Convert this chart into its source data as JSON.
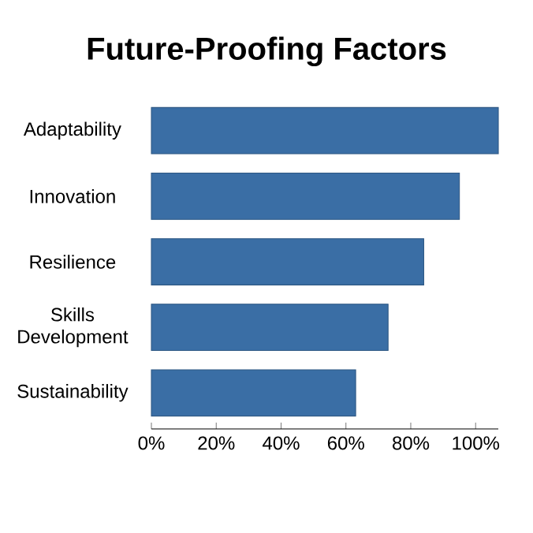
{
  "chart_data": {
    "type": "bar",
    "orientation": "horizontal",
    "title": "Future-Proofing Factors",
    "categories": [
      "Adaptability",
      "Innovation",
      "Resilience",
      "Skills Development",
      "Sustainability"
    ],
    "values": [
      107,
      95,
      84,
      73,
      63
    ],
    "color": "#3a6ea5",
    "xlim": [
      0,
      107
    ],
    "xticks": [
      {
        "value": 0,
        "label": "0%"
      },
      {
        "value": 20,
        "label": "20%"
      },
      {
        "value": 40,
        "label": "40%"
      },
      {
        "value": 60,
        "label": "60%"
      },
      {
        "value": 80,
        "label": "80%"
      },
      {
        "value": 100,
        "label": "100%"
      }
    ],
    "grid": false
  }
}
